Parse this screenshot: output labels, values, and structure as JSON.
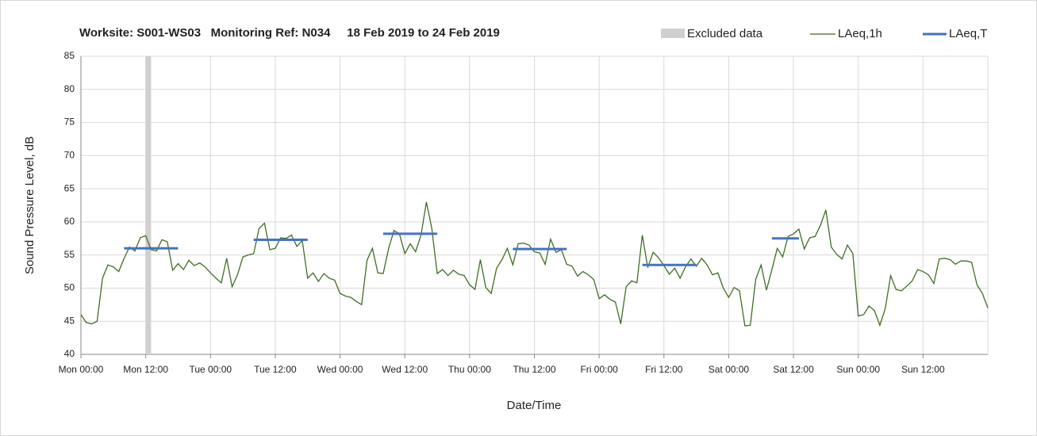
{
  "chart_data": {
    "type": "line",
    "title": "Worksite: S001-WS03   Monitoring Ref: N034     18 Feb 2019 to 24 Feb 2019",
    "xlabel": "Date/Time",
    "ylabel": "Sound Pressure Level, dB",
    "xlim": [
      0,
      168
    ],
    "ylim": [
      40,
      85
    ],
    "xticks": [
      {
        "value": 0,
        "label": "Mon 00:00"
      },
      {
        "value": 12,
        "label": "Mon 12:00"
      },
      {
        "value": 24,
        "label": "Tue 00:00"
      },
      {
        "value": 36,
        "label": "Tue 12:00"
      },
      {
        "value": 48,
        "label": "Wed 00:00"
      },
      {
        "value": 60,
        "label": "Wed 12:00"
      },
      {
        "value": 72,
        "label": "Thu 00:00"
      },
      {
        "value": 84,
        "label": "Thu 12:00"
      },
      {
        "value": 96,
        "label": "Fri 00:00"
      },
      {
        "value": 108,
        "label": "Fri 12:00"
      },
      {
        "value": 120,
        "label": "Sat 00:00"
      },
      {
        "value": 132,
        "label": "Sat 12:00"
      },
      {
        "value": 144,
        "label": "Sun 00:00"
      },
      {
        "value": 156,
        "label": "Sun 12:00"
      }
    ],
    "yticks": [
      40,
      45,
      50,
      55,
      60,
      65,
      70,
      75,
      80,
      85
    ],
    "grid": true,
    "excluded": {
      "name": "Excluded data",
      "color": "#d0d0d0",
      "x": [
        12,
        13
      ]
    },
    "series": [
      {
        "name": "LAeq,1h",
        "color": "#3f6e22",
        "x": [
          0,
          1,
          2,
          3,
          4,
          5,
          6,
          7,
          8,
          9,
          10,
          11,
          12,
          13,
          14,
          15,
          16,
          17,
          18,
          19,
          20,
          21,
          22,
          23,
          24,
          25,
          26,
          27,
          28,
          29,
          30,
          31,
          32,
          33,
          34,
          35,
          36,
          37,
          38,
          39,
          40,
          41,
          42,
          43,
          44,
          45,
          46,
          47,
          48,
          49,
          50,
          51,
          52,
          53,
          54,
          55,
          56,
          57,
          58,
          59,
          60,
          61,
          62,
          63,
          64,
          65,
          66,
          67,
          68,
          69,
          70,
          71,
          72,
          73,
          74,
          75,
          76,
          77,
          78,
          79,
          80,
          81,
          82,
          83,
          84,
          85,
          86,
          87,
          88,
          89,
          90,
          91,
          92,
          93,
          94,
          95,
          96,
          97,
          98,
          99,
          100,
          101,
          102,
          103,
          104,
          105,
          106,
          107,
          108,
          109,
          110,
          111,
          112,
          113,
          114,
          115,
          116,
          117,
          118,
          119,
          120,
          121,
          122,
          123,
          124,
          125,
          126,
          127,
          128,
          129,
          130,
          131,
          132,
          133,
          134,
          135,
          136,
          137,
          138,
          139,
          140,
          141,
          142,
          143,
          144,
          145,
          146,
          147,
          148,
          149,
          150,
          151,
          152,
          153,
          154,
          155,
          156,
          157,
          158,
          159,
          160,
          161,
          162,
          163,
          164,
          165,
          166,
          167,
          168
        ],
        "values": [
          46,
          44.8,
          44.6,
          45,
          51.5,
          53.5,
          53.2,
          52.5,
          54.5,
          56.2,
          55.6,
          57.6,
          57.9,
          55.8,
          55.6,
          57.3,
          57,
          52.7,
          53.7,
          52.8,
          54.2,
          53.4,
          53.8,
          53.2,
          52.3,
          51.5,
          50.8,
          54.5,
          50.2,
          52,
          54.7,
          55,
          55.2,
          59,
          59.8,
          55.8,
          56,
          57.6,
          57.5,
          58,
          56.3,
          57.2,
          51.5,
          52.3,
          51,
          52.2,
          51.5,
          51.2,
          49.2,
          48.8,
          48.6,
          48,
          47.5,
          54.2,
          56,
          52.3,
          52.2,
          56,
          58.7,
          58.2,
          55.2,
          56.7,
          55.5,
          58,
          63,
          59,
          52.2,
          52.8,
          51.9,
          52.7,
          52.1,
          51.9,
          50.5,
          49.8,
          54.3,
          50.1,
          49.2,
          53,
          54.3,
          56,
          53.5,
          56.7,
          56.8,
          56.5,
          55.5,
          55.3,
          53.6,
          57.4,
          55.4,
          55.8,
          53.6,
          53.3,
          51.8,
          52.5,
          52,
          51.3,
          48.4,
          49,
          48.3,
          47.9,
          44.6,
          50.2,
          51.1,
          50.8,
          58,
          53.1,
          55.4,
          54.6,
          53.4,
          52.1,
          53,
          51.5,
          53.2,
          54.4,
          53.3,
          54.5,
          53.5,
          52,
          52.3,
          50,
          48.6,
          50.1,
          49.6,
          44.3,
          44.4,
          51.3,
          53.5,
          49.7,
          52.8,
          56,
          54.7,
          57.8,
          58.2,
          58.9,
          55.9,
          57.6,
          57.8,
          59.5,
          61.8,
          56.2,
          55.1,
          54.4,
          56.5,
          55.2,
          45.8,
          46,
          47.3,
          46.6,
          44.4,
          46.9,
          51.9,
          49.8,
          49.6,
          50.3,
          51.1,
          52.8,
          52.5,
          52,
          50.7,
          54.4,
          54.5,
          54.3,
          53.6,
          54.1,
          54.1,
          53.9,
          50.5,
          49.2,
          47
        ]
      }
    ],
    "periods": {
      "name": "LAeq,T",
      "color": "#4472c4",
      "segments": [
        {
          "x": [
            8,
            18
          ],
          "value": 56
        },
        {
          "x": [
            32,
            42
          ],
          "value": 57.3
        },
        {
          "x": [
            56,
            66
          ],
          "value": 58.2
        },
        {
          "x": [
            80,
            90
          ],
          "value": 55.9
        },
        {
          "x": [
            104,
            114
          ],
          "value": 53.5
        },
        {
          "x": [
            128,
            133
          ],
          "value": 57.5
        }
      ]
    }
  }
}
